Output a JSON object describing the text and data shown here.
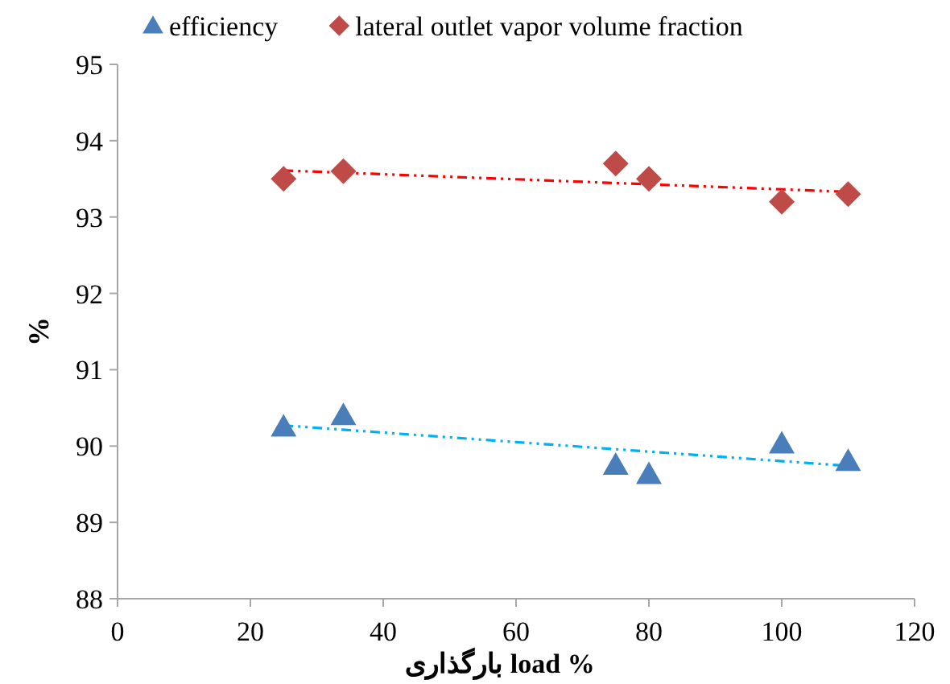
{
  "chart_data": {
    "type": "scatter",
    "xlabel": "بارگذاری load %",
    "ylabel": "%",
    "xlim": [
      0,
      120
    ],
    "xticks": [
      0,
      20,
      40,
      60,
      80,
      100,
      120
    ],
    "ylim": [
      88,
      95
    ],
    "yticks": [
      88,
      89,
      90,
      91,
      92,
      93,
      94,
      95
    ],
    "grid": false,
    "legend": "top",
    "series": [
      {
        "name": "efficiency",
        "color": "#4a7ebb",
        "marker": "triangle",
        "x": [
          25,
          34,
          75,
          80,
          100,
          110
        ],
        "values": [
          90.25,
          90.4,
          89.75,
          89.63,
          90.03,
          89.8
        ]
      },
      {
        "name": "lateral outlet vapor volume fraction",
        "color": "#be4b48",
        "marker": "diamond",
        "x": [
          25,
          34,
          75,
          80,
          100,
          110
        ],
        "values": [
          93.5,
          93.6,
          93.7,
          93.5,
          93.2,
          93.3
        ]
      },
      {
        "type": "line",
        "color": "#00b0f0",
        "line_style": "dashed",
        "marker": "none",
        "x": [
          25,
          110
        ],
        "values": [
          90.27,
          89.74
        ]
      },
      {
        "type": "line",
        "color": "#ff0000",
        "line_style": "dashed",
        "marker": "none",
        "x": [
          25,
          110
        ],
        "values": [
          93.61,
          93.33
        ]
      }
    ]
  }
}
